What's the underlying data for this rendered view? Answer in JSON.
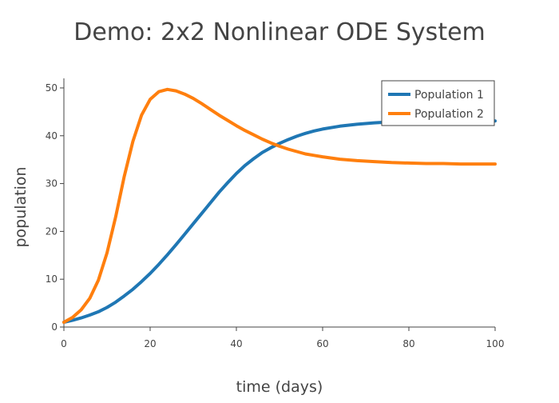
{
  "chart_data": {
    "type": "line",
    "title": "Demo: 2x2 Nonlinear ODE System",
    "xlabel": "time (days)",
    "ylabel": "population",
    "xlim": [
      0,
      100
    ],
    "ylim": [
      0,
      52
    ],
    "xticks": [
      0,
      20,
      40,
      60,
      80,
      100
    ],
    "yticks": [
      0,
      10,
      20,
      30,
      40,
      50
    ],
    "grid": false,
    "legend_position": "top-right",
    "series": [
      {
        "name": "Population 1",
        "color": "#1f77b4",
        "x": [
          0,
          2,
          4,
          6,
          8,
          10,
          12,
          14,
          16,
          18,
          20,
          22,
          24,
          26,
          28,
          30,
          32,
          34,
          36,
          38,
          40,
          42,
          44,
          46,
          48,
          50,
          52,
          54,
          56,
          58,
          60,
          64,
          68,
          72,
          76,
          80,
          84,
          88,
          92,
          96,
          100
        ],
        "y": [
          1.0,
          1.4,
          1.9,
          2.5,
          3.2,
          4.1,
          5.2,
          6.5,
          7.9,
          9.5,
          11.2,
          13.1,
          15.1,
          17.2,
          19.4,
          21.6,
          23.8,
          26.0,
          28.2,
          30.2,
          32.1,
          33.8,
          35.2,
          36.5,
          37.5,
          38.4,
          39.2,
          39.9,
          40.5,
          41.0,
          41.4,
          42.0,
          42.4,
          42.7,
          42.9,
          43.0,
          43.1,
          43.1,
          43.1,
          43.1,
          43.1
        ]
      },
      {
        "name": "Population 2",
        "color": "#ff7f0e",
        "x": [
          0,
          2,
          4,
          6,
          8,
          10,
          12,
          14,
          16,
          18,
          20,
          22,
          24,
          26,
          28,
          30,
          32,
          34,
          36,
          38,
          40,
          42,
          44,
          46,
          48,
          50,
          52,
          54,
          56,
          58,
          60,
          64,
          68,
          72,
          76,
          80,
          84,
          88,
          92,
          96,
          100
        ],
        "y": [
          1.0,
          2.0,
          3.6,
          6.0,
          9.8,
          15.5,
          23.0,
          31.5,
          38.8,
          44.3,
          47.6,
          49.2,
          49.7,
          49.4,
          48.7,
          47.8,
          46.7,
          45.5,
          44.3,
          43.2,
          42.1,
          41.1,
          40.2,
          39.3,
          38.5,
          37.8,
          37.2,
          36.7,
          36.2,
          35.9,
          35.6,
          35.1,
          34.8,
          34.6,
          34.4,
          34.3,
          34.2,
          34.2,
          34.1,
          34.1,
          34.1
        ]
      }
    ]
  }
}
